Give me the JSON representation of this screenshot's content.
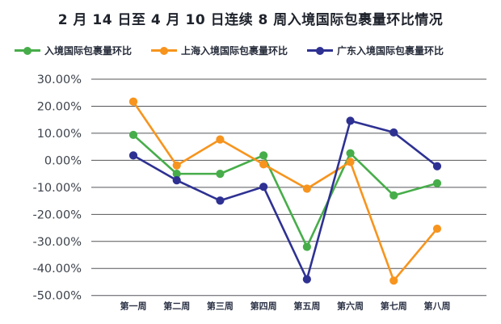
{
  "title": "2 月 14 日至 4 月 10 日连续 8 周入境国际包裹量环比情况",
  "chart_data": {
    "type": "line",
    "title": "2 月 14 日至 4 月 10 日连续 8 周入境国际包裹量环比情况",
    "categories": [
      "第一周",
      "第二周",
      "第三周",
      "第四周",
      "第五周",
      "第六周",
      "第七周",
      "第八周"
    ],
    "series": [
      {
        "name": "入境国际包裹量环比",
        "color": "#47ad4a",
        "values": [
          9.4,
          -5.0,
          -5.0,
          1.8,
          -32.0,
          2.6,
          -13.0,
          -8.5
        ]
      },
      {
        "name": "上海入境国际包裹量环比",
        "color": "#f7941d",
        "values": [
          21.7,
          -1.9,
          7.7,
          -1.5,
          -10.5,
          -0.6,
          -44.5,
          -25.3
        ]
      },
      {
        "name": "广东入境国际包裹量环比",
        "color": "#2e3192",
        "values": [
          1.8,
          -7.4,
          -14.9,
          -9.8,
          -44.0,
          14.6,
          10.3,
          -2.2
        ]
      }
    ],
    "ylabel": "",
    "xlabel": "",
    "ylim": [
      -50,
      30
    ],
    "y_tick_step": 10,
    "y_tick_labels": [
      "30.00%",
      "20.00%",
      "10.00%",
      "0.00%",
      "-10.00%",
      "-20.00%",
      "-30.00%",
      "-40.00%",
      "-50.00%"
    ],
    "grid": true,
    "legend_position": "top"
  },
  "colors": {
    "grid_line": "#55565a",
    "y_tick_text": "#3d434c",
    "x_tick_text": "#2b3246",
    "title_text": "#1e222b"
  }
}
